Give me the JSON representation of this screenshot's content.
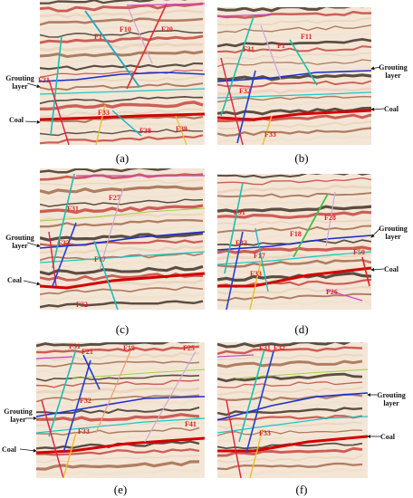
{
  "panels": [
    {
      "id": "a",
      "caption": "(a)",
      "left_labels": {
        "grouting": "Grouting layer",
        "coal": "Coal"
      },
      "faults": [
        "F1",
        "F10",
        "F20",
        "F31",
        "F33",
        "F38",
        "F39"
      ]
    },
    {
      "id": "b",
      "caption": "(b)",
      "right_labels": {
        "grouting": "Grouting layer",
        "coal": "Coal"
      },
      "faults": [
        "F1",
        "F11",
        "F31",
        "F32",
        "F33"
      ]
    },
    {
      "id": "c",
      "caption": "(c)",
      "left_labels": {
        "grouting": "Grouting layer",
        "coal": "Coal"
      },
      "faults": [
        "F27",
        "F31",
        "F32",
        "F17",
        "F32"
      ]
    },
    {
      "id": "d",
      "caption": "(d)",
      "right_labels": {
        "grouting": "Grouting layer",
        "coal": "Coal"
      },
      "faults": [
        "F31",
        "F28",
        "F18",
        "F32",
        "F17",
        "F33",
        "F50",
        "F26"
      ]
    },
    {
      "id": "e",
      "caption": "(e)",
      "left_labels": {
        "grouting": "Grouting layer",
        "coal": "Coal"
      },
      "faults": [
        "F31",
        "F21",
        "F19",
        "F25",
        "F32",
        "F33",
        "F41"
      ]
    },
    {
      "id": "f",
      "caption": "(f)",
      "right_labels": {
        "grouting": "Grouting layer",
        "coal": "Coal"
      },
      "faults": [
        "F31",
        "F32",
        "F33"
      ]
    }
  ],
  "colors": {
    "grouting_horizon": "#1a2fd0",
    "coal_horizon": "#d40000",
    "fault_label": "#d22222",
    "band_dark": "#2a1a10",
    "band_red": "#c0302a"
  }
}
